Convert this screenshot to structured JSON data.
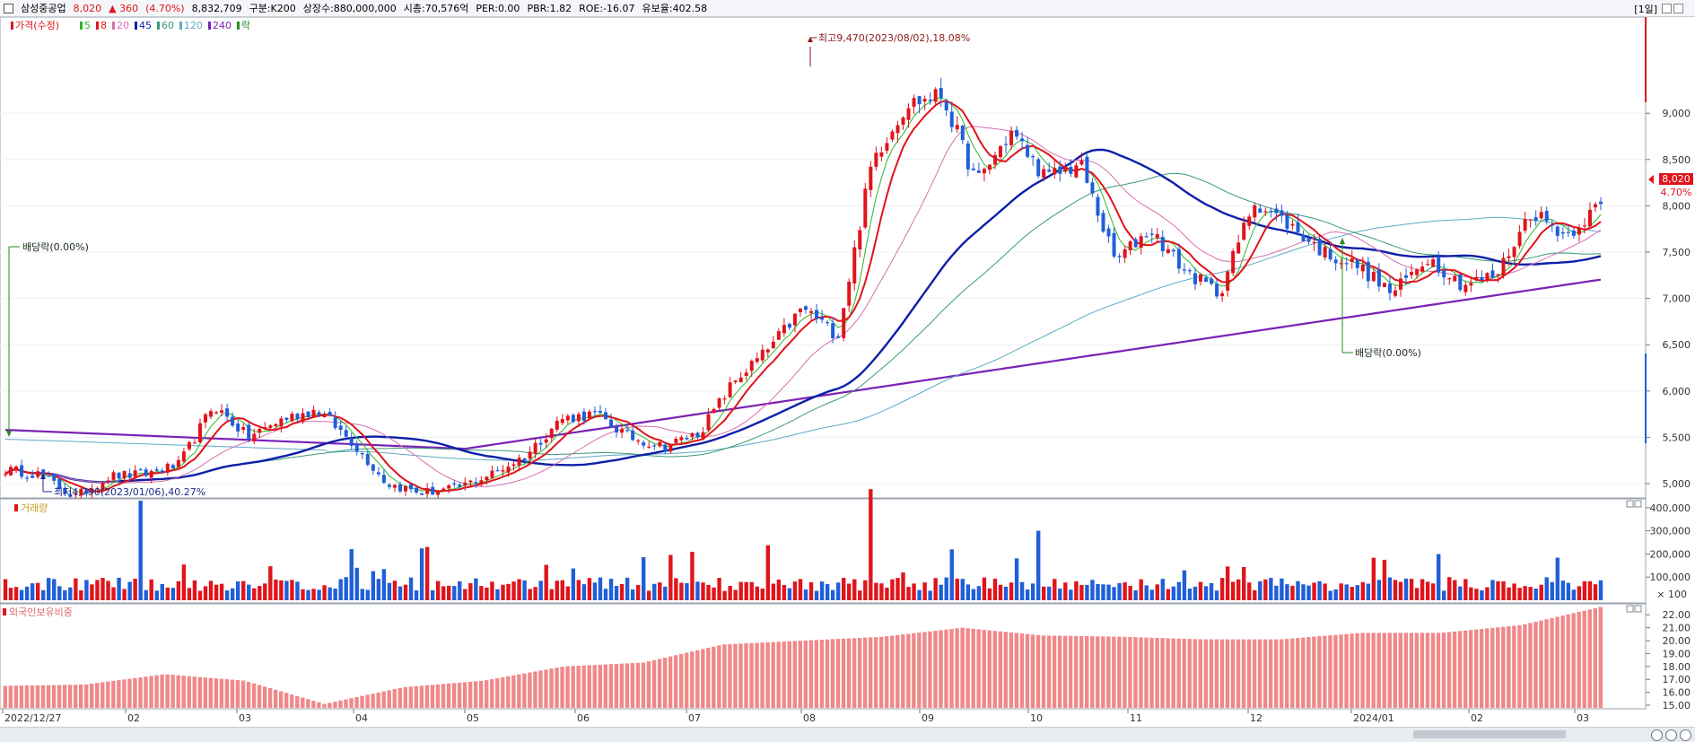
{
  "header": {
    "stock_name": "삼성중공업",
    "price": "8,020",
    "change": "▲ 360",
    "change_pct": "(4.70%)",
    "volume": "8,832,709",
    "market": "구분:K200",
    "shares": "상장수:880,000,000",
    "market_cap": "시총:70,576억",
    "per": "PER:0.00",
    "pbr": "PBR:1.82",
    "roe": "ROE:-16.07",
    "float_ratio": "유보율:402.58",
    "period": "[1일]"
  },
  "price_pane": {
    "legend": [
      {
        "label": "가격(수정)",
        "color": "#e0141b"
      },
      {
        "label": "5",
        "color": "#2db52d"
      },
      {
        "label": "8",
        "color": "#e0141b"
      },
      {
        "label": "20",
        "color": "#d66fb0"
      },
      {
        "label": "45",
        "color": "#0d1fa8"
      },
      {
        "label": "60",
        "color": "#3a9a7a"
      },
      {
        "label": "120",
        "color": "#5fa8c8"
      },
      {
        "label": "240",
        "color": "#7a22b5"
      },
      {
        "label": "락",
        "color": "#2a8a2a"
      }
    ],
    "yticks": [
      "9,000",
      "8,500",
      "8,000",
      "7,500",
      "7,000",
      "6,500",
      "6,000",
      "5,500",
      "5,000"
    ],
    "price_tag": "8,020",
    "pct_tag": "4.70%",
    "annotations": {
      "high": "최고9,470(2023/08/02),18.08%",
      "low": "최저4,790(2023/01/06),40.27%",
      "dividend1": "배당락(0.00%)",
      "dividend2": "배당락(0.00%)"
    }
  },
  "volume_pane": {
    "title": "거래량",
    "yticks": [
      "400,000",
      "300,000",
      "200,000",
      "100,000"
    ],
    "unit": "× 100"
  },
  "foreign_pane": {
    "title": "외국인보유비중",
    "yticks": [
      "22.00",
      "21.00",
      "20.00",
      "19.00",
      "18.00",
      "17.00",
      "16.00",
      "15.00"
    ]
  },
  "date_axis": [
    "2022/12/27",
    "02",
    "03",
    "04",
    "05",
    "06",
    "07",
    "08",
    "09",
    "10",
    "11",
    "12",
    "2024/01",
    "02",
    "03"
  ],
  "chart_data": {
    "type": "candlestick",
    "price_range": [
      4700,
      9700
    ],
    "anchor_prices": [
      5150,
      5100,
      4850,
      5080,
      5100,
      5200,
      5850,
      5500,
      5700,
      5800,
      5450,
      5000,
      4900,
      4950,
      5100,
      5300,
      5700,
      5750,
      5500,
      5400,
      5550,
      6100,
      6450,
      6900,
      6600,
      8500,
      9100,
      9200,
      8250,
      8800,
      8300,
      8450,
      7400,
      7750,
      7300,
      7050,
      8050,
      7800,
      7500,
      7350,
      7050,
      7450,
      7150,
      7250,
      7950,
      7680,
      8020
    ],
    "highlights": {
      "high": 9470,
      "low": 4790,
      "last": 8020,
      "change": 360,
      "change_pct": 4.7
    },
    "volume_max": 400000,
    "foreign_range": [
      15,
      22.5
    ],
    "foreign_anchor": [
      16.5,
      16.6,
      17.4,
      16.9,
      15.1,
      16.4,
      16.9,
      18.0,
      18.3,
      19.7,
      20.0,
      20.3,
      21.0,
      20.4,
      20.3,
      20.1,
      20.1,
      20.6,
      20.6,
      21.2,
      22.6
    ]
  },
  "scrollbar": {
    "zoom_icons": [
      "zoom-out",
      "zoom-reset",
      "zoom-in"
    ]
  }
}
